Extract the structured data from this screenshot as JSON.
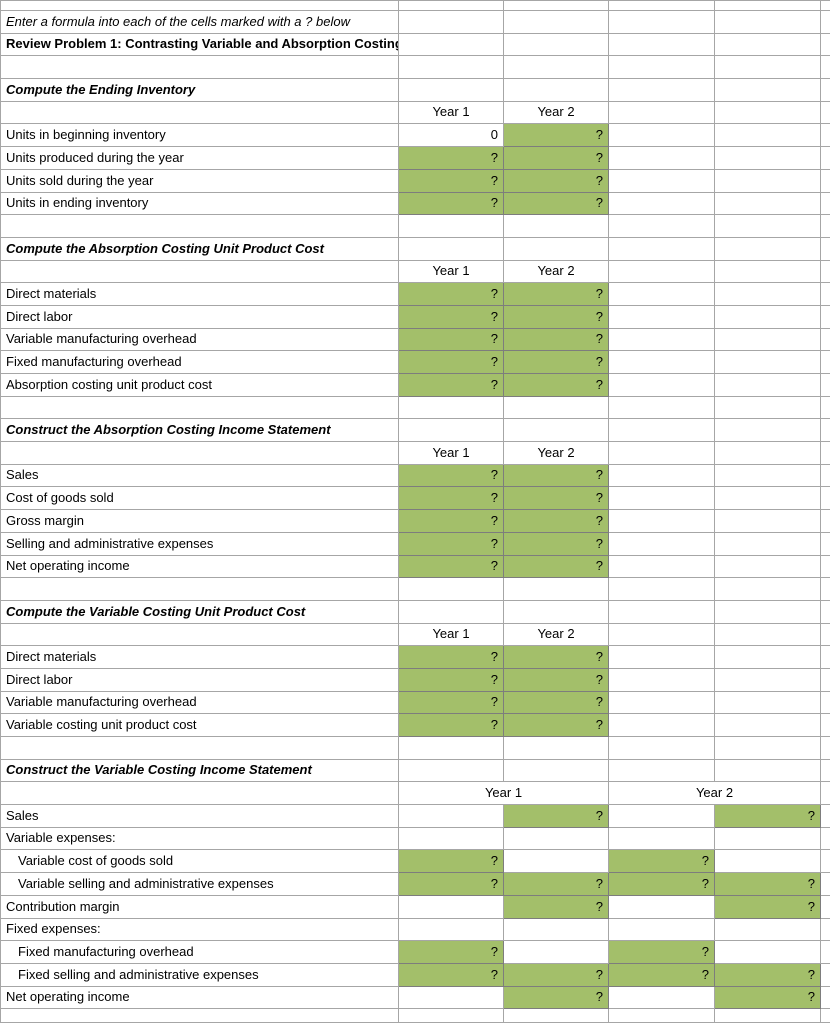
{
  "colors": {
    "cell_fill": "#A3BF6A",
    "grid_line": "#A6A6A6",
    "fill_border": "#7D7D7D",
    "rule_line": "#000000",
    "background": "#FFFFFF",
    "text": "#000000"
  },
  "grid": {
    "columns": [
      398,
      105,
      105,
      106,
      106,
      10
    ],
    "row_height": 22.7,
    "rows": [
      {
        "h": 10,
        "cells": []
      },
      {
        "cells": [
          {
            "col": 0,
            "text": "Enter a formula into each of the cells marked with a ? below",
            "style": "italic",
            "name": "instruction-cell"
          }
        ]
      },
      {
        "cells": [
          {
            "col": 0,
            "text": "Review Problem 1: Contrasting Variable and Absorption Costing",
            "style": "bold",
            "name": "sheet-title-cell"
          }
        ]
      },
      {
        "cells": []
      },
      {
        "cells": [
          {
            "col": 0,
            "text": "Compute the Ending Inventory",
            "style": "bolditalic",
            "name": "section-title-cell"
          }
        ]
      },
      {
        "cells": [
          {
            "col": 1,
            "text": "Year 1",
            "align": "center",
            "name": "year-header-cell"
          },
          {
            "col": 2,
            "text": "Year 2",
            "align": "center",
            "name": "year-header-cell"
          }
        ]
      },
      {
        "cells": [
          {
            "col": 0,
            "text": "Units in beginning inventory"
          },
          {
            "col": 1,
            "text": "0",
            "align": "right",
            "name": "value-cell"
          },
          {
            "col": 2,
            "text": "?",
            "align": "right",
            "fill": true
          }
        ]
      },
      {
        "cells": [
          {
            "col": 0,
            "text": "Units produced during the year"
          },
          {
            "col": 1,
            "text": "?",
            "align": "right",
            "fill": true
          },
          {
            "col": 2,
            "text": "?",
            "align": "right",
            "fill": true
          }
        ]
      },
      {
        "cells": [
          {
            "col": 0,
            "text": "Units sold during the year"
          },
          {
            "col": 1,
            "text": "?",
            "align": "right",
            "fill": true
          },
          {
            "col": 2,
            "text": "?",
            "align": "right",
            "fill": true
          }
        ]
      },
      {
        "cells": [
          {
            "col": 0,
            "text": "Units in ending inventory"
          },
          {
            "col": 1,
            "text": "?",
            "align": "right",
            "fill": true
          },
          {
            "col": 2,
            "text": "?",
            "align": "right",
            "fill": true
          }
        ]
      },
      {
        "cells": []
      },
      {
        "cells": [
          {
            "col": 0,
            "text": "Compute the Absorption Costing Unit Product Cost",
            "style": "bolditalic",
            "name": "section-title-cell"
          }
        ]
      },
      {
        "cells": [
          {
            "col": 1,
            "text": "Year 1",
            "align": "center",
            "name": "year-header-cell"
          },
          {
            "col": 2,
            "text": "Year 2",
            "align": "center",
            "name": "year-header-cell"
          }
        ]
      },
      {
        "cells": [
          {
            "col": 0,
            "text": "Direct materials"
          },
          {
            "col": 1,
            "text": "?",
            "align": "right",
            "fill": true
          },
          {
            "col": 2,
            "text": "?",
            "align": "right",
            "fill": true
          }
        ]
      },
      {
        "cells": [
          {
            "col": 0,
            "text": "Direct labor"
          },
          {
            "col": 1,
            "text": "?",
            "align": "right",
            "fill": true
          },
          {
            "col": 2,
            "text": "?",
            "align": "right",
            "fill": true
          }
        ]
      },
      {
        "cells": [
          {
            "col": 0,
            "text": "Variable manufacturing overhead"
          },
          {
            "col": 1,
            "text": "?",
            "align": "right",
            "fill": true
          },
          {
            "col": 2,
            "text": "?",
            "align": "right",
            "fill": true
          }
        ]
      },
      {
        "cells": [
          {
            "col": 0,
            "text": "Fixed manufacturing overhead"
          },
          {
            "col": 1,
            "text": "?",
            "align": "right",
            "fill": true
          },
          {
            "col": 2,
            "text": "?",
            "align": "right",
            "fill": true
          }
        ]
      },
      {
        "cells": [
          {
            "col": 0,
            "text": "Absorption costing unit product cost"
          },
          {
            "col": 1,
            "text": "?",
            "align": "right",
            "fill": true,
            "top": true
          },
          {
            "col": 2,
            "text": "?",
            "align": "right",
            "fill": true,
            "top": true
          }
        ]
      },
      {
        "cells": []
      },
      {
        "cells": [
          {
            "col": 0,
            "text": "Construct the Absorption Costing Income Statement",
            "style": "bolditalic",
            "name": "section-title-cell"
          }
        ]
      },
      {
        "cells": [
          {
            "col": 1,
            "text": "Year 1",
            "align": "center",
            "name": "year-header-cell"
          },
          {
            "col": 2,
            "text": "Year 2",
            "align": "center",
            "name": "year-header-cell"
          }
        ]
      },
      {
        "cells": [
          {
            "col": 0,
            "text": "Sales"
          },
          {
            "col": 1,
            "text": "?",
            "align": "right",
            "fill": true
          },
          {
            "col": 2,
            "text": "?",
            "align": "right",
            "fill": true
          }
        ]
      },
      {
        "cells": [
          {
            "col": 0,
            "text": "Cost of goods sold"
          },
          {
            "col": 1,
            "text": "?",
            "align": "right",
            "fill": true
          },
          {
            "col": 2,
            "text": "?",
            "align": "right",
            "fill": true
          }
        ]
      },
      {
        "cells": [
          {
            "col": 0,
            "text": "Gross margin"
          },
          {
            "col": 1,
            "text": "?",
            "align": "right",
            "fill": true,
            "top": true
          },
          {
            "col": 2,
            "text": "?",
            "align": "right",
            "fill": true,
            "top": true
          }
        ]
      },
      {
        "cells": [
          {
            "col": 0,
            "text": "Selling and administrative expenses"
          },
          {
            "col": 1,
            "text": "?",
            "align": "right",
            "fill": true
          },
          {
            "col": 2,
            "text": "?",
            "align": "right",
            "fill": true
          }
        ]
      },
      {
        "cells": [
          {
            "col": 0,
            "text": "Net operating income"
          },
          {
            "col": 1,
            "text": "?",
            "align": "right",
            "fill": true,
            "top": true
          },
          {
            "col": 2,
            "text": "?",
            "align": "right",
            "fill": true,
            "top": true
          }
        ]
      },
      {
        "cells": []
      },
      {
        "cells": [
          {
            "col": 0,
            "text": "Compute the Variable Costing Unit Product Cost",
            "style": "bolditalic",
            "name": "section-title-cell"
          }
        ]
      },
      {
        "cells": [
          {
            "col": 1,
            "text": "Year 1",
            "align": "center",
            "name": "year-header-cell"
          },
          {
            "col": 2,
            "text": "Year 2",
            "align": "center",
            "name": "year-header-cell"
          }
        ]
      },
      {
        "cells": [
          {
            "col": 0,
            "text": "Direct materials"
          },
          {
            "col": 1,
            "text": "?",
            "align": "right",
            "fill": true
          },
          {
            "col": 2,
            "text": "?",
            "align": "right",
            "fill": true
          }
        ]
      },
      {
        "cells": [
          {
            "col": 0,
            "text": "Direct labor"
          },
          {
            "col": 1,
            "text": "?",
            "align": "right",
            "fill": true
          },
          {
            "col": 2,
            "text": "?",
            "align": "right",
            "fill": true
          }
        ]
      },
      {
        "cells": [
          {
            "col": 0,
            "text": "Variable manufacturing overhead"
          },
          {
            "col": 1,
            "text": "?",
            "align": "right",
            "fill": true
          },
          {
            "col": 2,
            "text": "?",
            "align": "right",
            "fill": true
          }
        ]
      },
      {
        "cells": [
          {
            "col": 0,
            "text": "Variable costing unit product cost"
          },
          {
            "col": 1,
            "text": "?",
            "align": "right",
            "fill": true,
            "top": true
          },
          {
            "col": 2,
            "text": "?",
            "align": "right",
            "fill": true,
            "top": true
          }
        ]
      },
      {
        "cells": []
      },
      {
        "cells": [
          {
            "col": 0,
            "text": "Construct the Variable Costing Income Statement",
            "style": "bolditalic",
            "name": "section-title-cell"
          }
        ]
      },
      {
        "cells": [
          {
            "col": 1,
            "span": 2,
            "text": "Year 1",
            "align": "center",
            "name": "year-header-cell"
          },
          {
            "col": 3,
            "span": 2,
            "text": "Year 2",
            "align": "center",
            "name": "year-header-cell"
          }
        ]
      },
      {
        "cells": [
          {
            "col": 0,
            "text": "Sales"
          },
          {
            "col": 2,
            "text": "?",
            "align": "right",
            "fill": true
          },
          {
            "col": 4,
            "text": "?",
            "align": "right",
            "fill": true
          }
        ]
      },
      {
        "cells": [
          {
            "col": 0,
            "text": "Variable expenses:"
          }
        ]
      },
      {
        "cells": [
          {
            "col": 0,
            "text": "Variable cost of goods sold",
            "indent": true
          },
          {
            "col": 1,
            "text": "?",
            "align": "right",
            "fill": true
          },
          {
            "col": 3,
            "text": "?",
            "align": "right",
            "fill": true
          }
        ]
      },
      {
        "cells": [
          {
            "col": 0,
            "text": "Variable selling and administrative expenses",
            "indent": true
          },
          {
            "col": 1,
            "text": "?",
            "align": "right",
            "fill": true
          },
          {
            "col": 2,
            "text": "?",
            "align": "right",
            "fill": true
          },
          {
            "col": 3,
            "text": "?",
            "align": "right",
            "fill": true
          },
          {
            "col": 4,
            "text": "?",
            "align": "right",
            "fill": true
          }
        ]
      },
      {
        "cells": [
          {
            "col": 0,
            "text": "Contribution margin"
          },
          {
            "col": 2,
            "text": "?",
            "align": "right",
            "fill": true,
            "top": true
          },
          {
            "col": 4,
            "text": "?",
            "align": "right",
            "fill": true,
            "top": true
          }
        ]
      },
      {
        "cells": [
          {
            "col": 0,
            "text": "Fixed expenses:"
          }
        ]
      },
      {
        "cells": [
          {
            "col": 0,
            "text": "Fixed manufacturing overhead",
            "indent": true
          },
          {
            "col": 1,
            "text": "?",
            "align": "right",
            "fill": true
          },
          {
            "col": 3,
            "text": "?",
            "align": "right",
            "fill": true
          }
        ]
      },
      {
        "cells": [
          {
            "col": 0,
            "text": "Fixed selling and administrative expenses",
            "indent": true
          },
          {
            "col": 1,
            "text": "?",
            "align": "right",
            "fill": true
          },
          {
            "col": 2,
            "text": "?",
            "align": "right",
            "fill": true
          },
          {
            "col": 3,
            "text": "?",
            "align": "right",
            "fill": true
          },
          {
            "col": 4,
            "text": "?",
            "align": "right",
            "fill": true
          }
        ]
      },
      {
        "cells": [
          {
            "col": 0,
            "text": "Net operating income"
          },
          {
            "col": 2,
            "text": "?",
            "align": "right",
            "fill": true,
            "top": true
          },
          {
            "col": 4,
            "text": "?",
            "align": "right",
            "fill": true,
            "top": true
          }
        ]
      },
      {
        "h": 14,
        "cells": []
      }
    ]
  }
}
